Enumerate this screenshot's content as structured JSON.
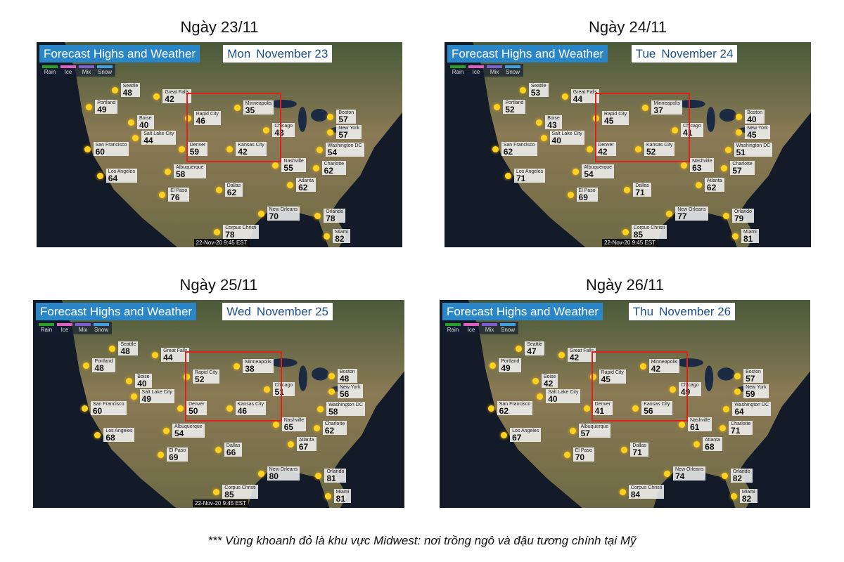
{
  "panels": [
    {
      "caption": "Ngày 23/11",
      "title": "Forecast Highs and Weather",
      "day": "Mon",
      "date": "November 23",
      "legend": [
        "Rain",
        "Ice",
        "Mix",
        "Snow"
      ],
      "cities": [
        {
          "name": "Seattle",
          "temp": 48
        },
        {
          "name": "Portland",
          "temp": 49
        },
        {
          "name": "Boise",
          "temp": 40
        },
        {
          "name": "Great Falls",
          "temp": 42
        },
        {
          "name": "Salt Lake City",
          "temp": 44
        },
        {
          "name": "San Francisco",
          "temp": 60
        },
        {
          "name": "Los Angeles",
          "temp": 64
        },
        {
          "name": "Albuquerque",
          "temp": 58
        },
        {
          "name": "El Paso",
          "temp": 76
        },
        {
          "name": "Rapid City",
          "temp": 46
        },
        {
          "name": "Denver",
          "temp": 59
        },
        {
          "name": "Minneapolis",
          "temp": 35
        },
        {
          "name": "Kansas City",
          "temp": 42
        },
        {
          "name": "Chicago",
          "temp": 43
        },
        {
          "name": "Dallas",
          "temp": 62
        },
        {
          "name": "Nashville",
          "temp": 55
        },
        {
          "name": "Atlanta",
          "temp": 62
        },
        {
          "name": "Boston",
          "temp": 57
        },
        {
          "name": "New York",
          "temp": 57
        },
        {
          "name": "Washington DC",
          "temp": 54
        },
        {
          "name": "Charlotte",
          "temp": 62
        },
        {
          "name": "New Orleans",
          "temp": 70
        },
        {
          "name": "Orlando",
          "temp": 78
        },
        {
          "name": "Corpus Christi",
          "temp": 78
        },
        {
          "name": "Miami",
          "temp": 82
        }
      ],
      "timestamp": "22-Nov-20 9:45 EST"
    },
    {
      "caption": "Ngày 24/11",
      "title": "Forecast Highs and Weather",
      "day": "Tue",
      "date": "November 24",
      "legend": [
        "Rain",
        "Ice",
        "Mix",
        "Snow"
      ],
      "cities": [
        {
          "name": "Seattle",
          "temp": 53
        },
        {
          "name": "Portland",
          "temp": 52
        },
        {
          "name": "Boise",
          "temp": 43
        },
        {
          "name": "Great Falls",
          "temp": 44
        },
        {
          "name": "Salt Lake City",
          "temp": 40
        },
        {
          "name": "San Francisco",
          "temp": 62
        },
        {
          "name": "Los Angeles",
          "temp": 71
        },
        {
          "name": "Albuquerque",
          "temp": 54
        },
        {
          "name": "El Paso",
          "temp": 69
        },
        {
          "name": "Rapid City",
          "temp": 45
        },
        {
          "name": "Denver",
          "temp": 42
        },
        {
          "name": "Minneapolis",
          "temp": 37
        },
        {
          "name": "Kansas City",
          "temp": 52
        },
        {
          "name": "Chicago",
          "temp": 41
        },
        {
          "name": "Dallas",
          "temp": 71
        },
        {
          "name": "Nashville",
          "temp": 63
        },
        {
          "name": "Atlanta",
          "temp": 62
        },
        {
          "name": "Boston",
          "temp": 40
        },
        {
          "name": "New York",
          "temp": 45
        },
        {
          "name": "Washington DC",
          "temp": 51
        },
        {
          "name": "Charlotte",
          "temp": 57
        },
        {
          "name": "New Orleans",
          "temp": 77
        },
        {
          "name": "Orlando",
          "temp": 79
        },
        {
          "name": "Corpus Christi",
          "temp": 85
        },
        {
          "name": "Miami",
          "temp": 81
        }
      ],
      "timestamp": "22-Nov-20 9:45 EST"
    },
    {
      "caption": "Ngày 25/11",
      "title": "Forecast Highs and Weather",
      "day": "Wed",
      "date": "November 25",
      "legend": [
        "Rain",
        "Ice",
        "Mix",
        "Snow"
      ],
      "cities": [
        {
          "name": "Seattle",
          "temp": 48
        },
        {
          "name": "Portland",
          "temp": 48
        },
        {
          "name": "Boise",
          "temp": 40
        },
        {
          "name": "Great Falls",
          "temp": 44
        },
        {
          "name": "Salt Lake City",
          "temp": 49
        },
        {
          "name": "San Francisco",
          "temp": 60
        },
        {
          "name": "Los Angeles",
          "temp": 68
        },
        {
          "name": "Albuquerque",
          "temp": 54
        },
        {
          "name": "El Paso",
          "temp": 69
        },
        {
          "name": "Rapid City",
          "temp": 52
        },
        {
          "name": "Denver",
          "temp": 50
        },
        {
          "name": "Minneapolis",
          "temp": 38
        },
        {
          "name": "Kansas City",
          "temp": 46
        },
        {
          "name": "Chicago",
          "temp": 51
        },
        {
          "name": "Dallas",
          "temp": 66
        },
        {
          "name": "Nashville",
          "temp": 65
        },
        {
          "name": "Atlanta",
          "temp": 67
        },
        {
          "name": "Boston",
          "temp": 48
        },
        {
          "name": "New York",
          "temp": 56
        },
        {
          "name": "Washington DC",
          "temp": 58
        },
        {
          "name": "Charlotte",
          "temp": 62
        },
        {
          "name": "New Orleans",
          "temp": 80
        },
        {
          "name": "Orlando",
          "temp": 81
        },
        {
          "name": "Corpus Christi",
          "temp": 85
        },
        {
          "name": "Miami",
          "temp": 81
        }
      ],
      "timestamp": "22-Nov-20 9:45 EST"
    },
    {
      "caption": "Ngày 26/11",
      "title": "Forecast Highs and Weather",
      "day": "Thu",
      "date": "November 26",
      "legend": [
        "Rain",
        "Ice",
        "Mix",
        "Snow"
      ],
      "cities": [
        {
          "name": "Seattle",
          "temp": 47
        },
        {
          "name": "Portland",
          "temp": 49
        },
        {
          "name": "Boise",
          "temp": 42
        },
        {
          "name": "Great Falls",
          "temp": 42
        },
        {
          "name": "Salt Lake City",
          "temp": 40
        },
        {
          "name": "San Francisco",
          "temp": 62
        },
        {
          "name": "Los Angeles",
          "temp": 67
        },
        {
          "name": "Albuquerque",
          "temp": 57
        },
        {
          "name": "El Paso",
          "temp": 70
        },
        {
          "name": "Rapid City",
          "temp": 45
        },
        {
          "name": "Denver",
          "temp": 41
        },
        {
          "name": "Minneapolis",
          "temp": 42
        },
        {
          "name": "Kansas City",
          "temp": 56
        },
        {
          "name": "Chicago",
          "temp": 49
        },
        {
          "name": "Dallas",
          "temp": 71
        },
        {
          "name": "Nashville",
          "temp": 61
        },
        {
          "name": "Atlanta",
          "temp": 68
        },
        {
          "name": "Boston",
          "temp": 57
        },
        {
          "name": "New York",
          "temp": 59
        },
        {
          "name": "Washington DC",
          "temp": 64
        },
        {
          "name": "Charlotte",
          "temp": 71
        },
        {
          "name": "New Orleans",
          "temp": 74
        },
        {
          "name": "Orlando",
          "temp": 82
        },
        {
          "name": "Corpus Christi",
          "temp": 84
        },
        {
          "name": "Miami",
          "temp": 82
        }
      ]
    }
  ],
  "footnote": "*** Vùng khoanh đỏ là khu vực Midwest: nơi trồng ngô và đậu tương chính tại Mỹ"
}
